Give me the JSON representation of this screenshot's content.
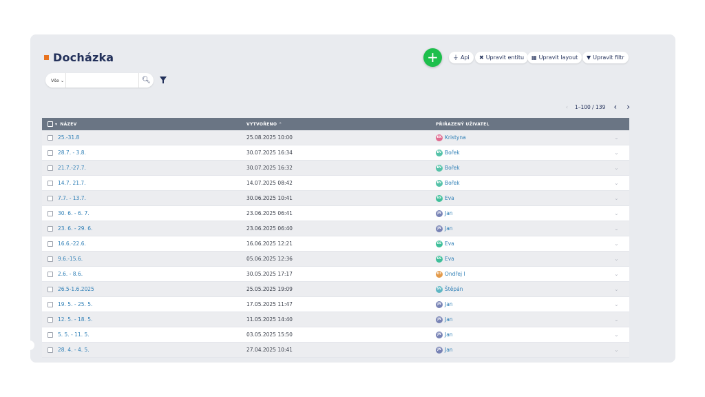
{
  "page": {
    "title": "Docházka",
    "accent_color": "#e8731f"
  },
  "toolbar": {
    "add_label": "+",
    "api": {
      "label": "Api",
      "icon": "plug-icon"
    },
    "edit_entity": {
      "label": "Upravit entitu",
      "icon": "tools-icon"
    },
    "edit_layout": {
      "label": "Upravit layout",
      "icon": "table-icon"
    },
    "edit_filter": {
      "label": "Upravit filtr",
      "icon": "filter-icon"
    }
  },
  "search": {
    "scope": "Vše ⌄",
    "value": "",
    "placeholder": ""
  },
  "pager": {
    "range": "1–100 / 139",
    "prev": "‹",
    "next": "›",
    "first": "‹"
  },
  "table": {
    "headers": [
      "NÁZEV",
      "VYTVOŘENO ⌃",
      "PŘIŘAZENÝ UŽIVATEL"
    ],
    "sort_marker": "▾",
    "rows": [
      {
        "name": "25.-31.8",
        "created": "25.08.2025 10:00",
        "initials": "KK",
        "user": "Kristyna",
        "color": "#e06a8f"
      },
      {
        "name": "28.7. - 3.8.",
        "created": "30.07.2025 16:34",
        "initials": "BV",
        "user": "Bořek",
        "color": "#55c2a8"
      },
      {
        "name": "21.7.-27.7.",
        "created": "30.07.2025 16:32",
        "initials": "BV",
        "user": "Bořek",
        "color": "#55c2a8"
      },
      {
        "name": "14.7. 21.7.",
        "created": "14.07.2025 08:42",
        "initials": "BV",
        "user": "Bořek",
        "color": "#55c2a8"
      },
      {
        "name": "7.7. - 13.7.",
        "created": "30.06.2025 10:41",
        "initials": "ES",
        "user": "Eva",
        "color": "#3fbf9a"
      },
      {
        "name": "30. 6. - 6. 7.",
        "created": "23.06.2025 06:41",
        "initials": "JN",
        "user": "Jan",
        "color": "#7883b5"
      },
      {
        "name": "23. 6. - 29. 6.",
        "created": "23.06.2025 06:40",
        "initials": "JN",
        "user": "Jan",
        "color": "#7883b5"
      },
      {
        "name": "16.6.-22.6.",
        "created": "16.06.2025 12:21",
        "initials": "ES",
        "user": "Eva",
        "color": "#3fbf9a"
      },
      {
        "name": "9.6.-15.6.",
        "created": "05.06.2025 12:36",
        "initials": "ES",
        "user": "Eva",
        "color": "#3fbf9a"
      },
      {
        "name": "2.6. - 8.6.",
        "created": "30.05.2025 17:17",
        "initials": "OT",
        "user": "Ondřej I",
        "color": "#e39a4a"
      },
      {
        "name": "26.5-1.6.2025",
        "created": "25.05.2025 19:09",
        "initials": "ŠV",
        "user": "Štěpán",
        "color": "#5fb7c4"
      },
      {
        "name": "19. 5. - 25. 5.",
        "created": "17.05.2025 11:47",
        "initials": "JN",
        "user": "Jan",
        "color": "#7883b5"
      },
      {
        "name": "12. 5. - 18. 5.",
        "created": "11.05.2025 14:40",
        "initials": "JN",
        "user": "Jan",
        "color": "#7883b5"
      },
      {
        "name": "5. 5. - 11. 5.",
        "created": "03.05.2025 15:50",
        "initials": "JN",
        "user": "Jan",
        "color": "#7883b5"
      },
      {
        "name": "28. 4. - 4. 5.",
        "created": "27.04.2025 10:41",
        "initials": "JN",
        "user": "Jan",
        "color": "#7883b5"
      }
    ],
    "row_menu": "⌄"
  }
}
